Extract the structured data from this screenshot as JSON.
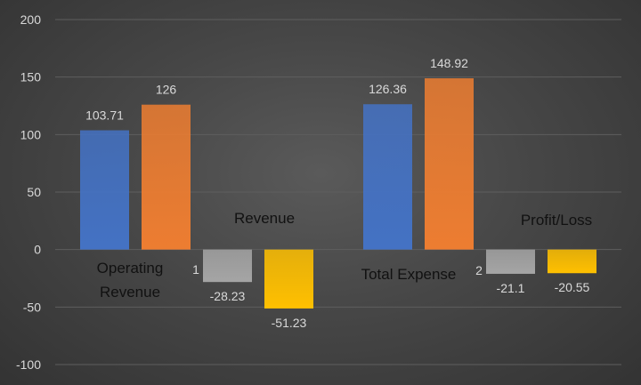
{
  "chart_data": {
    "type": "bar",
    "title": "",
    "xlabel": "",
    "ylabel": "",
    "ylim": [
      -100,
      200
    ],
    "yticks": [
      200,
      150,
      100,
      50,
      0,
      -50,
      -100
    ],
    "grid": true,
    "legend": "none",
    "colors": {
      "blue": "#4472C4",
      "orange": "#ED7D31",
      "gray": "#A5A5A5",
      "gold": "#FFC000"
    },
    "group_numbers": [
      "1",
      "2"
    ],
    "groups": [
      {
        "number": "1",
        "bars": [
          {
            "category": "Operating Revenue",
            "value": 103.71,
            "label": "103.71",
            "color": "#4472C4",
            "cat_label": "Operating\nRevenue"
          },
          {
            "category": "Revenue",
            "value": 126,
            "label": "126",
            "color": "#ED7D31",
            "cat_label": "Revenue"
          },
          {
            "category": "",
            "value": -28.23,
            "label": "-28.23",
            "color": "#A5A5A5",
            "cat_label": ""
          },
          {
            "category": "",
            "value": -51.23,
            "label": "-51.23",
            "color": "#FFC000",
            "cat_label": ""
          }
        ]
      },
      {
        "number": "2",
        "bars": [
          {
            "category": "Total Expense",
            "value": 126.36,
            "label": "126.36",
            "color": "#4472C4",
            "cat_label": "Total Expense"
          },
          {
            "category": "Profit/Loss",
            "value": 148.92,
            "label": "148.92",
            "color": "#ED7D31",
            "cat_label": "Profit/Loss"
          },
          {
            "category": "",
            "value": -21.1,
            "label": "-21.1",
            "color": "#A5A5A5",
            "cat_label": ""
          },
          {
            "category": "",
            "value": -20.55,
            "label": "-20.55",
            "color": "#FFC000",
            "cat_label": ""
          }
        ]
      }
    ]
  }
}
